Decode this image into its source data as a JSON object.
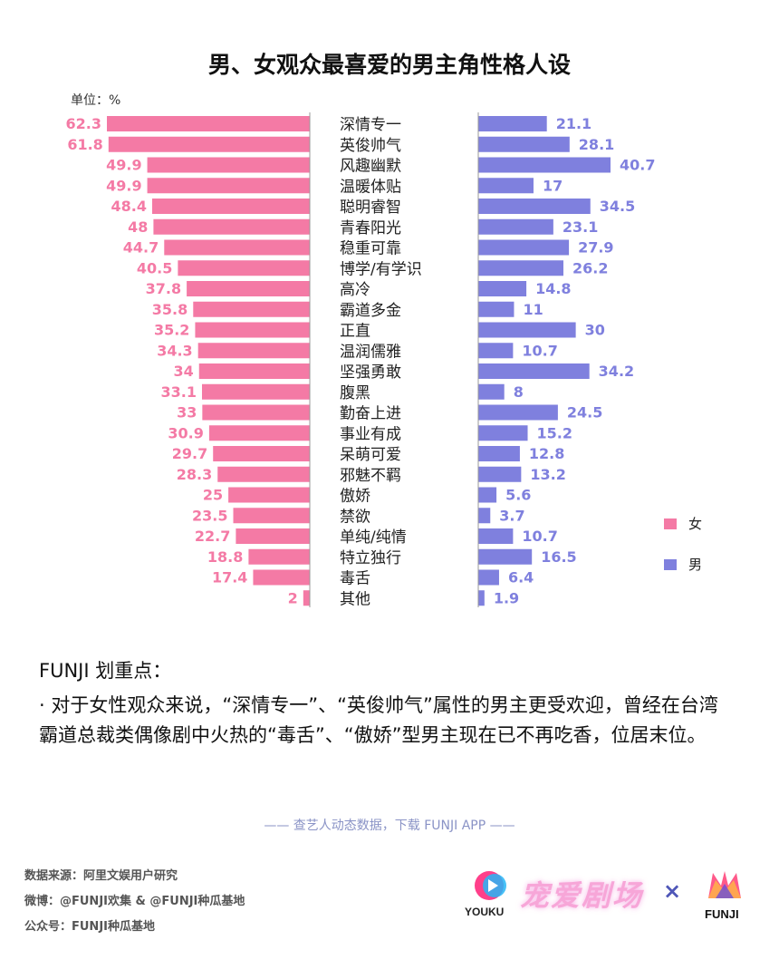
{
  "title": "男、女观众最喜爱的男主角性格人设",
  "unit": "单位：%",
  "legend": {
    "female": "女",
    "male": "男"
  },
  "colors": {
    "female": "#f47aa5",
    "male": "#7f80de"
  },
  "note": {
    "title": "FUNJI 划重点：",
    "body": "· 对于女性观众来说，“深情专一”、“英俊帅气”属性的男主更受欢迎，曾经在台湾霸道总裁类偶像剧中火热的“毒舌”、“傲娇”型男主现在已不再吃香，位居末位。"
  },
  "promo": "—— 查艺人动态数据，下载 FUNJI APP ——",
  "footer": {
    "source": "数据来源：阿里文娱用户研究",
    "weibo": "微博：@FUNJI欢集 & @FUNJI种瓜基地",
    "wechat": "公众号：FUNJI种瓜基地"
  },
  "logos": {
    "youku": "YOUKU",
    "chong": "宠爱剧场",
    "times": "×",
    "funji": "FUNJI"
  },
  "chart_data": {
    "type": "bar",
    "orientation": "horizontal-butterfly",
    "categories": [
      "深情专一",
      "英俊帅气",
      "风趣幽默",
      "温暖体贴",
      "聪明睿智",
      "青春阳光",
      "稳重可靠",
      "博学/有学识",
      "高冷",
      "霸道多金",
      "正直",
      "温润儒雅",
      "坚强勇敢",
      "腹黑",
      "勤奋上进",
      "事业有成",
      "呆萌可爱",
      "邪魅不羁",
      "傲娇",
      "禁欲",
      "单纯/纯情",
      "特立独行",
      "毒舌",
      "其他"
    ],
    "series": [
      {
        "name": "女",
        "values": [
          62.3,
          61.8,
          49.9,
          49.9,
          48.4,
          48,
          44.7,
          40.5,
          37.8,
          35.8,
          35.2,
          34.3,
          34,
          33.1,
          33,
          30.9,
          29.7,
          28.3,
          25,
          23.5,
          22.7,
          18.8,
          17.4,
          2
        ]
      },
      {
        "name": "男",
        "values": [
          21.1,
          28.1,
          40.7,
          17,
          34.5,
          23.1,
          27.9,
          26.2,
          14.8,
          11,
          30,
          10.7,
          34.2,
          8,
          24.5,
          15.2,
          12.8,
          13.2,
          5.6,
          3.7,
          10.7,
          16.5,
          6.4,
          1.9
        ]
      }
    ],
    "grid": false,
    "legend_position": "right"
  }
}
